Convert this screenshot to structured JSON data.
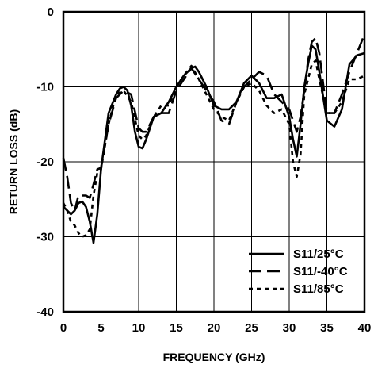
{
  "chart_data": {
    "type": "line",
    "xlabel": "FREQUENCY (GHz)",
    "ylabel": "RETURN LOSS (dB)",
    "xlim": [
      0,
      40
    ],
    "ylim": [
      -40,
      0
    ],
    "xticks": [
      0,
      5,
      10,
      15,
      20,
      25,
      30,
      35,
      40
    ],
    "yticks": [
      0,
      -10,
      -20,
      -30,
      -40
    ],
    "grid": true,
    "legend_position": "bottom-right",
    "series": [
      {
        "name": "S11/25°C",
        "style": "solid",
        "color": "#000000",
        "x": [
          0,
          0.5,
          1,
          1.5,
          2,
          2.5,
          3,
          3.5,
          4,
          4.5,
          5,
          6,
          7,
          7.5,
          8,
          8.5,
          9,
          9.5,
          10,
          10.5,
          11,
          12,
          13,
          14,
          15,
          16,
          17,
          17.5,
          18,
          19,
          20,
          21,
          22,
          23,
          24,
          25,
          26,
          27,
          28,
          29,
          30,
          30.5,
          31,
          31.5,
          32,
          32.5,
          33,
          33.5,
          34,
          35,
          36,
          37,
          38,
          39,
          40
        ],
        "y": [
          -26,
          -26.5,
          -27,
          -26.5,
          -25.5,
          -25.3,
          -26,
          -28,
          -30.8,
          -27,
          -21,
          -13.5,
          -11,
          -10.2,
          -10,
          -10.5,
          -12.5,
          -16,
          -18,
          -18.2,
          -17,
          -14,
          -13.5,
          -12,
          -10,
          -8.5,
          -7.5,
          -7.3,
          -8,
          -10,
          -12.5,
          -13,
          -13,
          -12,
          -9.5,
          -8.5,
          -9.5,
          -11.5,
          -11.5,
          -11,
          -14,
          -17,
          -19.3,
          -15,
          -10,
          -7,
          -4.5,
          -5,
          -8,
          -14.5,
          -15.3,
          -13,
          -7,
          -5.8,
          -5.5
        ]
      },
      {
        "name": "S11/-40°C",
        "style": "dashed",
        "color": "#000000",
        "x": [
          0,
          0.5,
          1,
          1.5,
          2,
          2.5,
          3,
          3.5,
          4,
          4.5,
          5,
          6,
          7,
          8,
          9,
          10,
          10.5,
          11,
          12,
          13,
          14,
          15,
          16,
          17,
          18,
          19,
          20,
          21,
          22,
          23,
          24,
          25,
          26,
          27,
          28,
          29,
          30,
          31,
          31.5,
          32,
          32.5,
          33,
          33.5,
          34,
          35,
          36,
          37,
          38,
          39,
          40
        ],
        "y": [
          -19.5,
          -22,
          -25.5,
          -26.5,
          -24.5,
          -24.5,
          -24.5,
          -24.8,
          -23,
          -21,
          -20.8,
          -15,
          -11.5,
          -10.5,
          -11,
          -15.5,
          -16,
          -16,
          -14,
          -13.5,
          -13.5,
          -10.5,
          -9,
          -7.5,
          -9,
          -10.5,
          -12,
          -14.5,
          -15,
          -12,
          -10,
          -9,
          -8,
          -8.5,
          -11,
          -12,
          -13,
          -16,
          -14,
          -10.5,
          -6.5,
          -4,
          -3.5,
          -5.5,
          -13.5,
          -13.5,
          -11,
          -8,
          -5.5,
          -3
        ]
      },
      {
        "name": "S11/85°C",
        "style": "dotted",
        "color": "#000000",
        "x": [
          0,
          0.5,
          1,
          1.5,
          2,
          2.5,
          3,
          3.5,
          4,
          4.5,
          5,
          6,
          7,
          8,
          9,
          10,
          10.5,
          11,
          12,
          13,
          14,
          15,
          16,
          17,
          18,
          19,
          20,
          21,
          22,
          23,
          24,
          25,
          26,
          27,
          28,
          29,
          30,
          30.5,
          31,
          31.5,
          32,
          33,
          33.5,
          34,
          35,
          36,
          37,
          38,
          39,
          40
        ],
        "y": [
          -25.5,
          -26.5,
          -28,
          -28.5,
          -29.5,
          -30,
          -29.8,
          -29,
          -24.5,
          -21.5,
          -21,
          -15,
          -11,
          -10.5,
          -12,
          -16.5,
          -17,
          -16.5,
          -14,
          -12.5,
          -12.5,
          -10,
          -8.5,
          -7.2,
          -9,
          -11,
          -13,
          -14,
          -14.5,
          -12,
          -10,
          -9.5,
          -10.5,
          -12.5,
          -13.5,
          -13,
          -15,
          -20,
          -22,
          -19,
          -11,
          -7,
          -6.5,
          -9,
          -13.5,
          -13.5,
          -12,
          -9,
          -9,
          -8.5
        ]
      }
    ]
  }
}
